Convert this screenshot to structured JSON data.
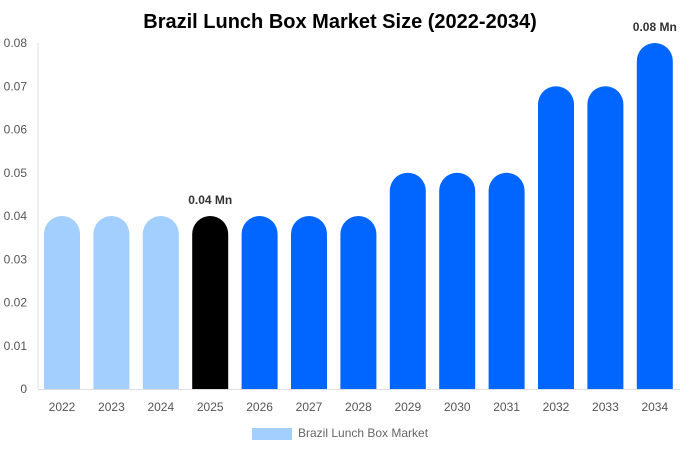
{
  "chart_data": {
    "type": "bar",
    "title": "Brazil Lunch Box Market Size (2022-2034)",
    "xlabel": "",
    "ylabel": "",
    "categories": [
      "2022",
      "2023",
      "2024",
      "2025",
      "2026",
      "2027",
      "2028",
      "2029",
      "2030",
      "2031",
      "2032",
      "2033",
      "2034"
    ],
    "series": [
      {
        "name": "Brazil Lunch Box Market",
        "values": [
          0.04,
          0.04,
          0.04,
          0.04,
          0.04,
          0.04,
          0.04,
          0.05,
          0.05,
          0.05,
          0.07,
          0.07,
          0.08
        ]
      }
    ],
    "bar_colors": [
      "#a3cfff",
      "#a3cfff",
      "#a3cfff",
      "#000000",
      "#0066ff",
      "#0066ff",
      "#0066ff",
      "#0066ff",
      "#0066ff",
      "#0066ff",
      "#0066ff",
      "#0066ff",
      "#0066ff"
    ],
    "ylim": [
      0,
      0.08
    ],
    "yticks": [
      "0",
      "0.01",
      "0.02",
      "0.03",
      "0.04",
      "0.05",
      "0.06",
      "0.07",
      "0.08"
    ],
    "data_labels": [
      {
        "index": 3,
        "text": "0.04 Mn"
      },
      {
        "index": 12,
        "text": "0.08 Mn"
      }
    ],
    "legend": {
      "label": "Brazil Lunch Box Market",
      "color": "#a3cfff",
      "placement": "bottom"
    },
    "grid": false
  }
}
